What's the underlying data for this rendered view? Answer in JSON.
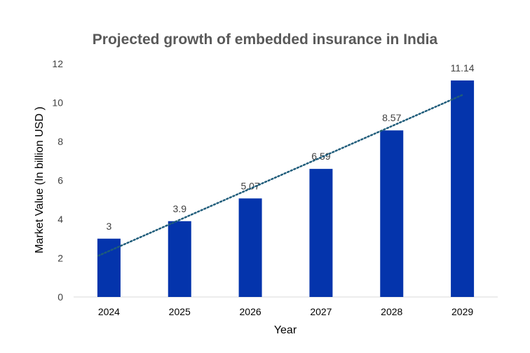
{
  "chart_data": {
    "type": "bar",
    "title": "Projected growth of embedded insurance in India",
    "xlabel": "Year",
    "ylabel": "Market Value (In billion USD )",
    "categories": [
      "2024",
      "2025",
      "2026",
      "2027",
      "2028",
      "2029"
    ],
    "values": [
      3,
      3.9,
      5.07,
      6.59,
      8.57,
      11.14
    ],
    "data_labels": [
      "3",
      "3.9",
      "5.07",
      "6.59",
      "8.57",
      "11.14"
    ],
    "ylim": [
      0,
      12
    ],
    "yticks": [
      "0",
      "2",
      "4",
      "6",
      "8",
      "10",
      "12"
    ],
    "trendline": "linear, dotted",
    "grid": false,
    "legend": "none",
    "colors": {
      "bar": "#0434AC",
      "trendline": "#1F5C7A",
      "axis": "#D9D9D9"
    }
  }
}
